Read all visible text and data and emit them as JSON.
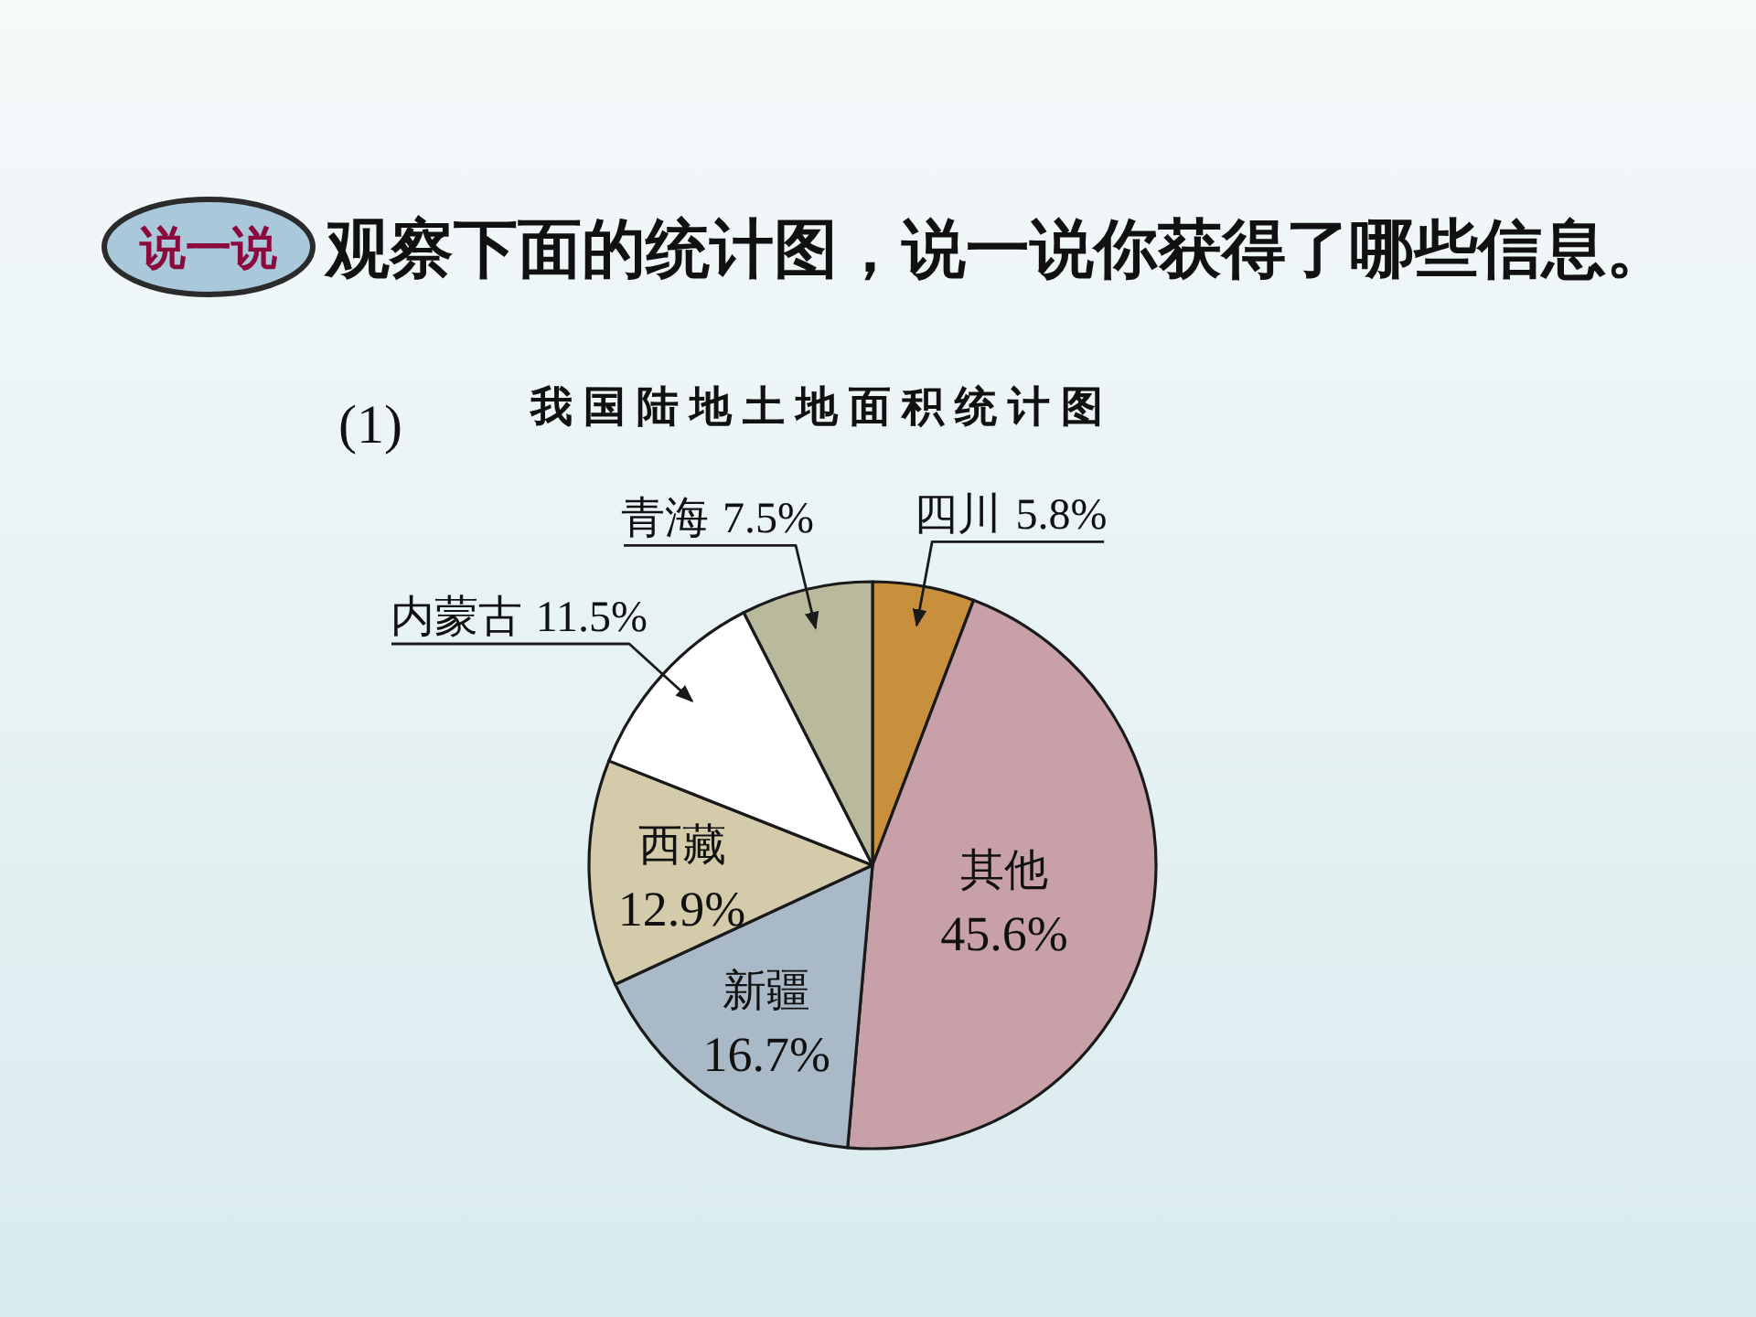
{
  "chart_data": {
    "type": "pie",
    "title": "我国陆地土地面积统计图",
    "annotations": [
      "说一说",
      "观察下面的统计图，说一说你获得了哪些信息。",
      "(1)"
    ],
    "categories": [
      "四川",
      "其他",
      "新疆",
      "西藏",
      "内蒙古",
      "青海"
    ],
    "values": [
      5.8,
      45.6,
      16.7,
      12.9,
      11.5,
      7.5
    ],
    "value_labels": [
      "5.8%",
      "45.6%",
      "16.7%",
      "12.9%",
      "11.5%",
      "7.5%"
    ],
    "colors": [
      "#c8903c",
      "#c8a0a8",
      "#a9b9c7",
      "#d3cba9",
      "#ffffff",
      "#b9b99b"
    ]
  }
}
